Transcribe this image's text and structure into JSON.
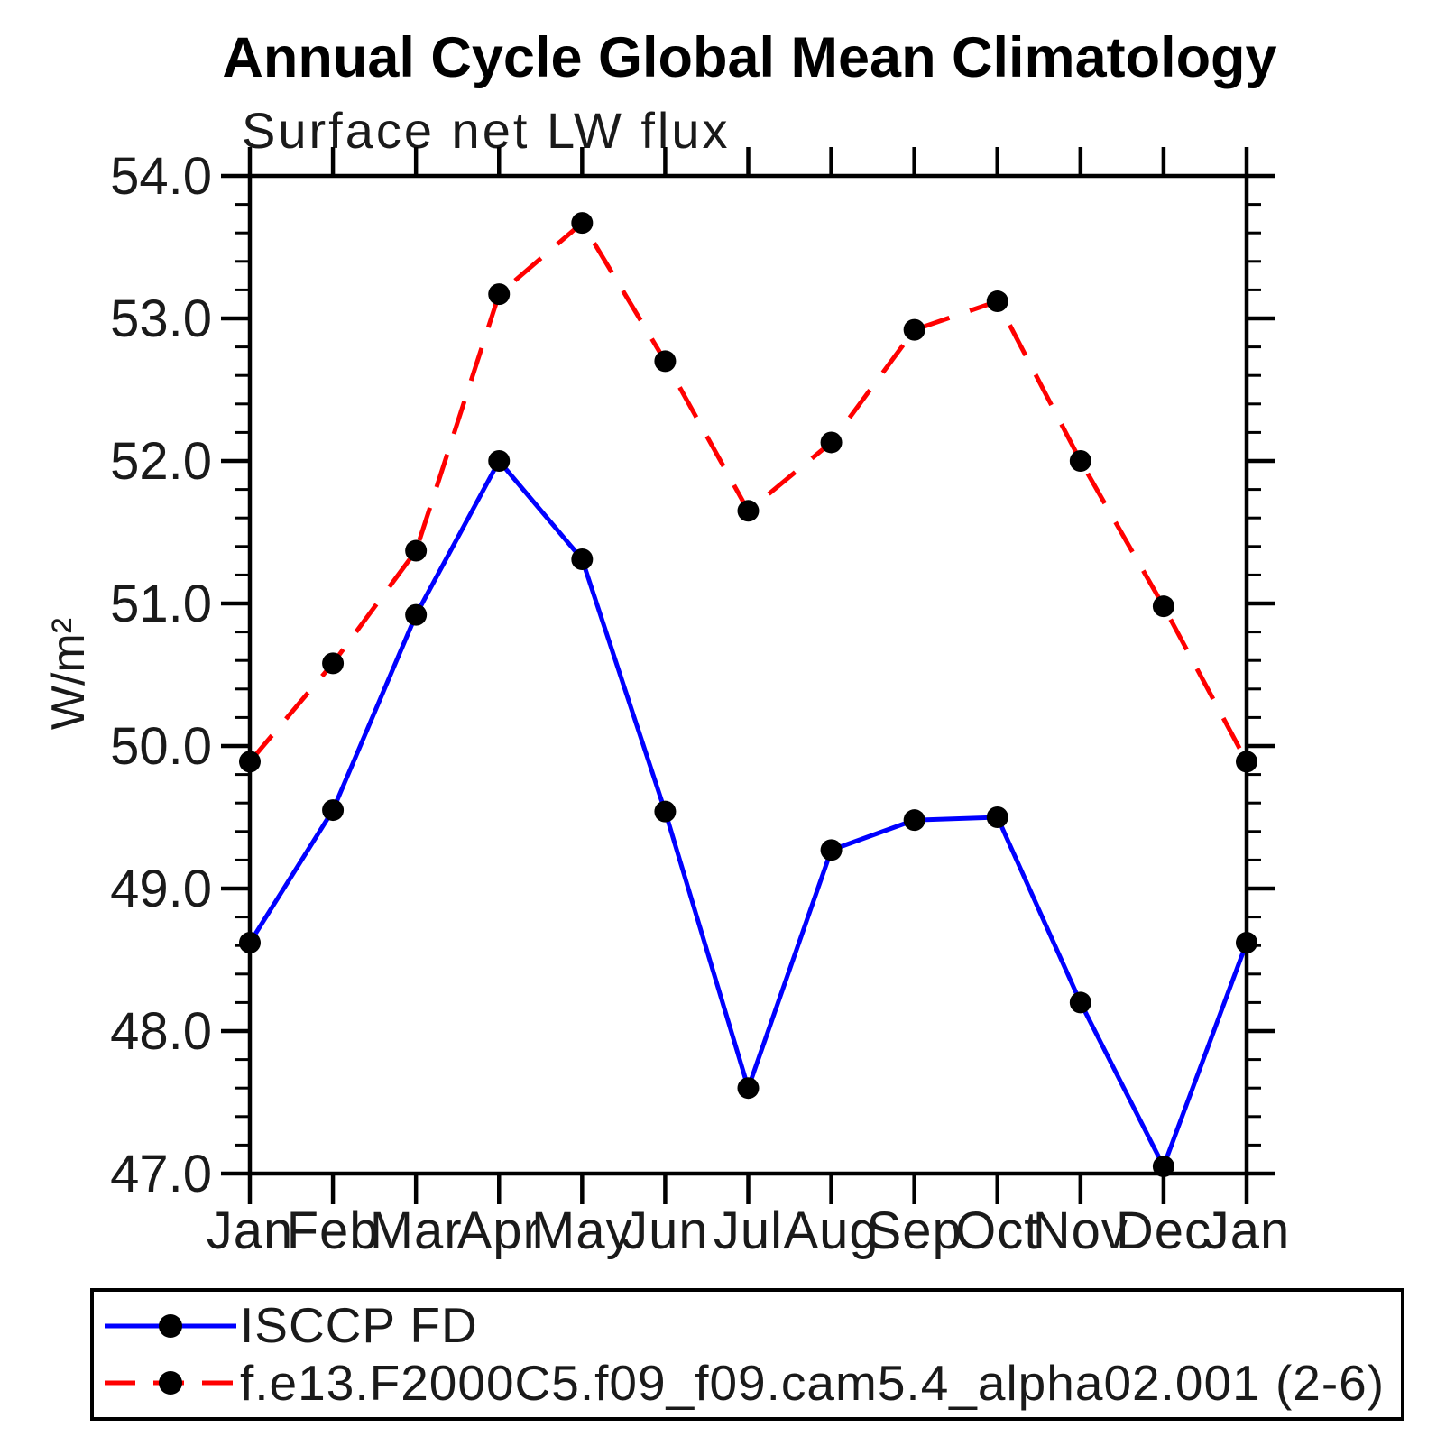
{
  "chart_data": {
    "type": "line",
    "title": "Annual Cycle Global Mean Climatology",
    "subtitle": "Surface net LW flux",
    "ylabel": "W/m²",
    "xlabel": "",
    "categories": [
      "Jan",
      "Feb",
      "Mar",
      "Apr",
      "May",
      "Jun",
      "Jul",
      "Aug",
      "Sep",
      "Oct",
      "Nov",
      "Dec",
      "Jan"
    ],
    "ylim": [
      47.0,
      54.0
    ],
    "ytick_major": 1.0,
    "ytick_minor": 0.2,
    "ytick_labels": [
      "54.0",
      "53.0",
      "52.0",
      "51.0",
      "50.0",
      "49.0",
      "48.0",
      "47.0"
    ],
    "grid": false,
    "legend_position": "bottom-left",
    "axis_color": "#000000",
    "marker": "circle",
    "marker_color": "#000000",
    "series": [
      {
        "name": "ISCCP FD",
        "color": "#0000ff",
        "line_style": "solid",
        "values": [
          48.62,
          49.55,
          50.92,
          52.0,
          51.31,
          49.54,
          47.6,
          49.27,
          49.48,
          49.5,
          48.2,
          47.05,
          48.62
        ]
      },
      {
        "name": "f.e13.F2000C5.f09_f09.cam5.4_alpha02.001 (2-6)",
        "color": "#ff0000",
        "line_style": "dashed",
        "values": [
          49.89,
          50.58,
          51.37,
          53.17,
          53.67,
          52.7,
          51.65,
          52.13,
          52.92,
          53.12,
          52.0,
          50.98,
          49.89
        ]
      }
    ]
  }
}
